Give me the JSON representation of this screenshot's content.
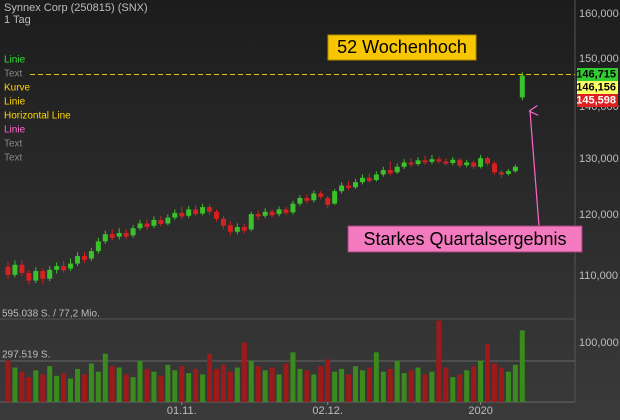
{
  "chart_data": {
    "type": "candlestick",
    "title": "Synnex Corp (250815) (SNX)",
    "subtitle": "1 Tag",
    "log_scale": true,
    "categories": [
      null,
      null,
      null,
      null,
      null,
      null,
      null,
      null,
      null,
      null,
      null,
      null,
      null,
      null,
      null,
      null,
      null,
      null,
      null,
      null,
      null,
      null,
      null,
      null,
      null,
      "01.11.",
      null,
      null,
      null,
      null,
      null,
      null,
      null,
      null,
      null,
      null,
      null,
      null,
      null,
      null,
      null,
      null,
      null,
      null,
      null,
      null,
      "02.12.",
      null,
      null,
      null,
      null,
      null,
      null,
      null,
      null,
      null,
      null,
      null,
      null,
      null,
      null,
      null,
      null,
      null,
      null,
      null,
      null,
      null,
      "2020",
      null,
      null,
      null,
      null,
      null,
      null
    ],
    "open": [
      111.5,
      110.2,
      111.8,
      110.5,
      109.3,
      110.8,
      109.6,
      111.0,
      111.6,
      111.2,
      112.0,
      113.2,
      112.8,
      114.0,
      115.6,
      116.8,
      116.4,
      117.0,
      116.6,
      117.8,
      118.6,
      118.2,
      119.2,
      118.6,
      119.6,
      120.4,
      119.9,
      121.0,
      120.3,
      121.4,
      120.6,
      119.4,
      118.3,
      117.2,
      118.0,
      117.6,
      120.2,
      119.9,
      120.6,
      120.2,
      121.0,
      120.5,
      122.0,
      123.0,
      122.6,
      123.8,
      123.0,
      122.0,
      124.2,
      125.2,
      124.9,
      125.8,
      126.6,
      126.2,
      127.2,
      128.0,
      127.6,
      128.6,
      129.4,
      129.1,
      129.8,
      129.5,
      130.0,
      129.6,
      129.3,
      129.9,
      128.9,
      129.4,
      128.6,
      130.2,
      129.2,
      127.6,
      127.3,
      127.8,
      142.0
    ],
    "high": [
      112.3,
      112.5,
      112.6,
      111.0,
      111.4,
      111.2,
      111.6,
      112.2,
      112.4,
      112.8,
      113.8,
      113.9,
      114.5,
      116.2,
      117.4,
      117.6,
      117.8,
      117.6,
      118.3,
      119.2,
      119.3,
      119.8,
      119.9,
      120.2,
      121.0,
      121.5,
      121.6,
      121.8,
      122.0,
      121.9,
      121.0,
      119.9,
      118.9,
      118.6,
      118.5,
      120.6,
      120.8,
      121.2,
      121.0,
      121.5,
      121.4,
      122.5,
      123.5,
      123.6,
      124.3,
      124.2,
      123.4,
      124.6,
      125.8,
      126.0,
      126.4,
      127.2,
      127.4,
      127.8,
      128.6,
      129.6,
      129.2,
      130.0,
      130.2,
      130.4,
      130.6,
      130.8,
      130.5,
      130.2,
      130.4,
      130.2,
      129.9,
      129.8,
      130.8,
      130.5,
      129.6,
      128.0,
      128.2,
      129.0,
      147.2
    ],
    "low": [
      109.6,
      109.8,
      110.0,
      108.7,
      108.9,
      108.8,
      109.2,
      110.4,
      110.5,
      110.8,
      111.6,
      112.1,
      112.4,
      113.6,
      115.2,
      115.8,
      115.9,
      116.0,
      116.2,
      117.4,
      117.5,
      117.8,
      118.1,
      118.3,
      119.2,
      119.3,
      119.5,
      119.8,
      120.0,
      120.1,
      118.9,
      117.6,
      116.6,
      116.8,
      116.9,
      117.3,
      119.2,
      119.5,
      119.6,
      119.8,
      120.0,
      120.1,
      121.6,
      122.0,
      122.2,
      122.8,
      121.2,
      121.8,
      123.8,
      124.4,
      124.6,
      125.4,
      125.7,
      125.9,
      126.8,
      127.0,
      127.3,
      128.2,
      128.6,
      128.8,
      129.0,
      129.1,
      129.2,
      128.8,
      128.9,
      128.4,
      128.5,
      128.2,
      128.3,
      128.8,
      127.2,
      126.6,
      127.0,
      127.5,
      141.4
    ],
    "close": [
      110.2,
      111.8,
      110.5,
      109.3,
      110.8,
      109.6,
      111.0,
      111.6,
      110.9,
      112.0,
      113.2,
      112.6,
      114.0,
      115.6,
      116.8,
      116.2,
      117.0,
      116.4,
      117.8,
      118.6,
      118.0,
      119.2,
      118.5,
      119.6,
      120.4,
      119.8,
      121.0,
      120.2,
      121.4,
      120.6,
      119.4,
      118.2,
      117.2,
      118.0,
      117.4,
      120.2,
      119.8,
      120.6,
      120.0,
      121.0,
      120.4,
      122.0,
      123.0,
      122.5,
      123.8,
      123.2,
      121.8,
      124.2,
      125.2,
      124.8,
      125.8,
      126.6,
      126.0,
      127.2,
      128.0,
      127.4,
      128.6,
      129.4,
      129.0,
      129.8,
      129.4,
      130.0,
      129.6,
      129.2,
      129.9,
      128.8,
      129.4,
      128.6,
      130.2,
      129.2,
      127.6,
      127.2,
      127.8,
      128.6,
      146.5
    ],
    "up_color": "#3cc02c",
    "down_color": "#d42121",
    "ylim": [
      91.9,
      163.2
    ],
    "yticks": [
      {
        "value": 100,
        "label": "100,000"
      },
      {
        "value": 110,
        "label": "110,000"
      },
      {
        "value": 120,
        "label": "120,000"
      },
      {
        "value": 130,
        "label": "130,000"
      },
      {
        "value": 140,
        "label": "140,000"
      },
      {
        "value": 150,
        "label": "150,000"
      },
      {
        "value": 160,
        "label": "160,000"
      }
    ],
    "volume": {
      "values": [
        300000,
        250000,
        220000,
        180000,
        230000,
        200000,
        260000,
        190000,
        210000,
        170000,
        240000,
        200000,
        280000,
        220000,
        350000,
        260000,
        250000,
        200000,
        180000,
        300000,
        240000,
        220000,
        190000,
        270000,
        230000,
        260000,
        210000,
        240000,
        200000,
        350000,
        240000,
        270000,
        220000,
        250000,
        430000,
        300000,
        260000,
        230000,
        250000,
        200000,
        280000,
        360000,
        240000,
        230000,
        200000,
        260000,
        310000,
        220000,
        240000,
        200000,
        260000,
        230000,
        250000,
        360000,
        220000,
        240000,
        300000,
        210000,
        230000,
        250000,
        200000,
        220000,
        590000,
        250000,
        180000,
        200000,
        230000,
        260000,
        300000,
        420000,
        280000,
        250000,
        220000,
        270000,
        520000
      ],
      "up_color": "#3a8a1e",
      "down_color": "#9c1a1a",
      "ylim": [
        0,
        595038
      ],
      "yticks": [
        {
          "value": 595038,
          "label": "595.038 S. / 77,2 Mio."
        },
        {
          "value": 297519,
          "label": "297.519 S."
        }
      ]
    },
    "price_labels": [
      {
        "value": 146.715,
        "label": "146,715",
        "color": "#33cc33",
        "text_color": "#000000"
      },
      {
        "value": 146.156,
        "label": "146,156",
        "color": "#ffff66",
        "text_color": "#000000"
      },
      {
        "value": 145.598,
        "label": "145,598",
        "color": "#e02020",
        "text_color": "#ffffff"
      }
    ],
    "legend": [
      {
        "text": "Linie",
        "color": "#33dd33"
      },
      {
        "text": "Text",
        "color": "#888888"
      },
      {
        "text": "Kurve",
        "color": "#ffd700"
      },
      {
        "text": "Linie",
        "color": "#ffd700"
      },
      {
        "text": "Horizontal Line",
        "color": "#ffd700"
      },
      {
        "text": "Linie",
        "color": "#ff66cc"
      },
      {
        "text": "Text",
        "color": "#888888"
      },
      {
        "text": "Text",
        "color": "#888888"
      }
    ],
    "annotations": [
      "52 Wochenhoch",
      "Starkes Quartalsergebnis"
    ]
  }
}
